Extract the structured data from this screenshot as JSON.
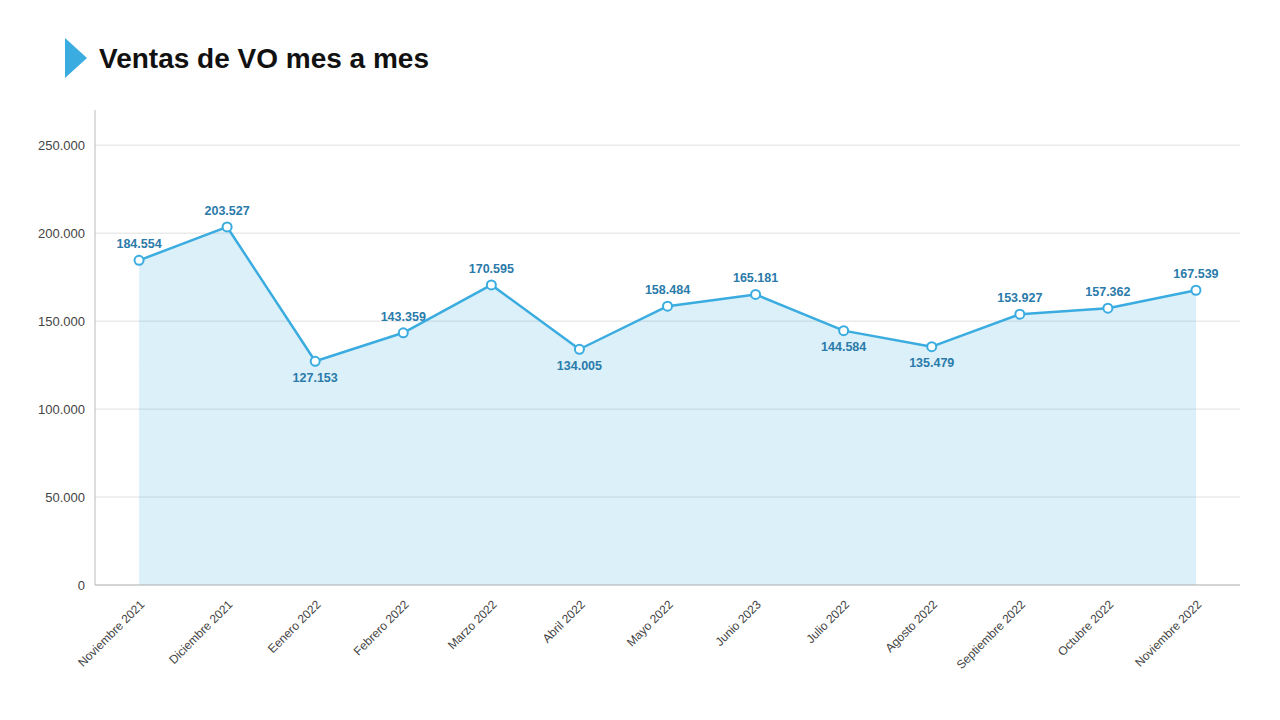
{
  "chart_data": {
    "type": "area",
    "title": "Ventas de VO mes a mes",
    "categories": [
      "Noviembre 2021",
      "Diciembre 2021",
      "Eenero 2022",
      "Febrero 2022",
      "Marzo 2022",
      "Abril 2022",
      "Mayo 2022",
      "Junio 2023",
      "Julio 2022",
      "Agosto 2022",
      "Septiembre 2022",
      "Octubre 2022",
      "Noviembre 2022"
    ],
    "values": [
      184554,
      203527,
      127153,
      143359,
      170595,
      134005,
      158484,
      165181,
      144584,
      135479,
      153927,
      157362,
      167539
    ],
    "value_labels": [
      "184.554",
      "203.527",
      "127.153",
      "143.359",
      "170.595",
      "134.005",
      "158.484",
      "165.181",
      "144.584",
      "135.479",
      "153.927",
      "157.362",
      "167.539"
    ],
    "data_labels": true,
    "color": "#3aace0",
    "marker": "circle",
    "ylim": [
      0,
      270000
    ],
    "yticks": [
      0,
      {
        "value": 50000,
        "label": "50.000"
      },
      {
        "value": 100000,
        "label": "100.000"
      },
      {
        "value": 150000,
        "label": "150.000"
      },
      {
        "value": 200000,
        "label": "200.000"
      },
      {
        "value": 250000,
        "label": "250.000"
      }
    ],
    "grid": true
  }
}
